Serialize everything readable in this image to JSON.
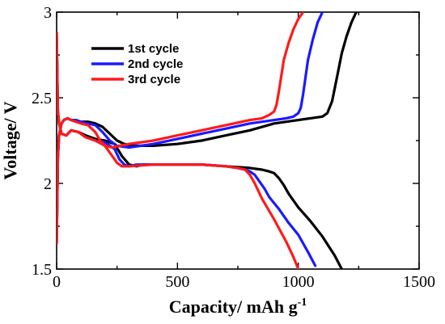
{
  "chart_data": {
    "type": "line",
    "xlabel": "Capacity/ mAh g",
    "xlabel_superscript": "-1",
    "ylabel": "Voltage/ V",
    "xlim": [
      0,
      1500
    ],
    "ylim": [
      1.5,
      3.0
    ],
    "xticks": [
      0,
      500,
      1000,
      1500
    ],
    "xtick_labels": [
      "0",
      "500",
      "1000",
      "1500"
    ],
    "yticks": [
      1.5,
      2.0,
      2.5,
      3.0
    ],
    "ytick_labels": [
      "1.5",
      "2",
      "2.5",
      "3"
    ],
    "grid": false,
    "legend_position": "top-left",
    "series": [
      {
        "name": "1st  cycle",
        "color": "#000000",
        "discharge": {
          "x": [
            0,
            5,
            10,
            20,
            40,
            60,
            90,
            120,
            160,
            200,
            240,
            270,
            300,
            330,
            360,
            400,
            500,
            600,
            700,
            800,
            850,
            880,
            900,
            920,
            940,
            960,
            1000,
            1050,
            1100,
            1150,
            1180
          ],
          "y": [
            2.88,
            2.42,
            2.35,
            2.29,
            2.28,
            2.31,
            2.3,
            2.28,
            2.26,
            2.25,
            2.23,
            2.16,
            2.11,
            2.1,
            2.11,
            2.11,
            2.11,
            2.11,
            2.1,
            2.09,
            2.08,
            2.07,
            2.06,
            2.03,
            1.99,
            1.94,
            1.86,
            1.78,
            1.69,
            1.58,
            1.5
          ]
        },
        "charge": {
          "x": [
            0,
            5,
            10,
            20,
            30,
            45,
            60,
            80,
            100,
            130,
            160,
            190,
            220,
            250,
            280,
            320,
            360,
            400,
            500,
            600,
            700,
            800,
            900,
            950,
            1000,
            1050,
            1100,
            1120,
            1140,
            1160,
            1180,
            1200,
            1220,
            1240
          ],
          "y": [
            1.65,
            2.15,
            2.28,
            2.35,
            2.37,
            2.38,
            2.37,
            2.37,
            2.36,
            2.36,
            2.35,
            2.33,
            2.29,
            2.25,
            2.23,
            2.22,
            2.22,
            2.22,
            2.23,
            2.25,
            2.28,
            2.31,
            2.35,
            2.36,
            2.37,
            2.38,
            2.39,
            2.41,
            2.48,
            2.62,
            2.76,
            2.86,
            2.94,
            3.0
          ]
        }
      },
      {
        "name": "2nd  cycle",
        "color": "#1a1aff",
        "discharge": {
          "x": [
            0,
            5,
            10,
            20,
            40,
            60,
            90,
            120,
            160,
            200,
            240,
            260,
            280,
            300,
            330,
            400,
            500,
            600,
            700,
            750,
            780,
            800,
            820,
            840,
            860,
            880,
            920,
            960,
            1000,
            1040,
            1070
          ],
          "y": [
            2.88,
            2.42,
            2.35,
            2.29,
            2.28,
            2.31,
            2.3,
            2.27,
            2.25,
            2.24,
            2.2,
            2.14,
            2.11,
            2.1,
            2.11,
            2.11,
            2.11,
            2.11,
            2.1,
            2.09,
            2.08,
            2.07,
            2.05,
            2.01,
            1.97,
            1.92,
            1.85,
            1.77,
            1.7,
            1.6,
            1.52
          ]
        },
        "charge": {
          "x": [
            0,
            5,
            10,
            20,
            30,
            45,
            60,
            80,
            100,
            130,
            160,
            190,
            220,
            250,
            300,
            400,
            500,
            600,
            700,
            800,
            850,
            900,
            950,
            980,
            1000,
            1010,
            1020,
            1030,
            1040,
            1060,
            1080,
            1100
          ],
          "y": [
            1.65,
            2.15,
            2.28,
            2.35,
            2.37,
            2.38,
            2.37,
            2.37,
            2.36,
            2.35,
            2.34,
            2.3,
            2.25,
            2.22,
            2.21,
            2.23,
            2.26,
            2.29,
            2.32,
            2.35,
            2.36,
            2.37,
            2.38,
            2.39,
            2.41,
            2.44,
            2.52,
            2.62,
            2.72,
            2.84,
            2.94,
            3.0
          ]
        }
      },
      {
        "name": "3rd  cycle",
        "color": "#ff1a1a",
        "discharge": {
          "x": [
            0,
            5,
            10,
            20,
            40,
            60,
            90,
            120,
            160,
            200,
            230,
            250,
            270,
            300,
            400,
            500,
            600,
            700,
            750,
            780,
            800,
            820,
            850,
            900,
            950,
            980,
            1000
          ],
          "y": [
            2.88,
            2.42,
            2.35,
            2.29,
            2.28,
            2.31,
            2.3,
            2.27,
            2.25,
            2.22,
            2.16,
            2.12,
            2.1,
            2.1,
            2.11,
            2.11,
            2.11,
            2.1,
            2.09,
            2.08,
            2.05,
            2.0,
            1.91,
            1.79,
            1.66,
            1.57,
            1.5
          ]
        },
        "charge": {
          "x": [
            0,
            5,
            10,
            20,
            30,
            45,
            60,
            80,
            100,
            130,
            160,
            180,
            200,
            230,
            260,
            300,
            400,
            500,
            600,
            700,
            800,
            850,
            880,
            900,
            910,
            920,
            930,
            940,
            960,
            980,
            1000,
            1020
          ],
          "y": [
            1.65,
            2.15,
            2.28,
            2.35,
            2.37,
            2.38,
            2.37,
            2.36,
            2.35,
            2.34,
            2.3,
            2.25,
            2.22,
            2.21,
            2.22,
            2.23,
            2.25,
            2.28,
            2.31,
            2.34,
            2.37,
            2.38,
            2.4,
            2.42,
            2.46,
            2.54,
            2.63,
            2.72,
            2.82,
            2.9,
            2.96,
            3.0
          ]
        }
      }
    ]
  }
}
